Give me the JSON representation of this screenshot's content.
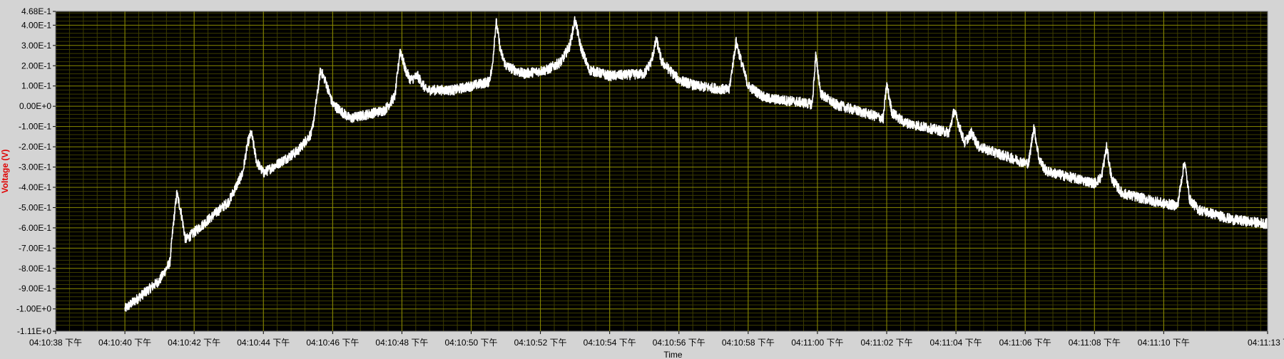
{
  "chart_data": {
    "type": "line",
    "xlabel": "Time",
    "ylabel": "Voltage (V)",
    "x_start_label": "04:10:38 下午",
    "x_tick_labels": [
      "04:10:38 下午",
      "04:10:40 下午",
      "04:10:42 下午",
      "04:10:44 下午",
      "04:10:46 下午",
      "04:10:48 下午",
      "04:10:50 下午",
      "04:10:52 下午",
      "04:10:54 下午",
      "04:10:56 下午",
      "04:10:58 下午",
      "04:11:00 下午",
      "04:11:02 下午",
      "04:11:04 下午",
      "04:11:06 下午",
      "04:11:08 下午",
      "04:11:10 下午",
      "04:11:13 下午"
    ],
    "xlim": [
      "04:10:38",
      "04:11:13"
    ],
    "ylim": [
      -1.11,
      0.468
    ],
    "y_tick_labels": [
      "4.68E-1",
      "4.00E-1",
      "3.00E-1",
      "2.00E-1",
      "1.00E-1",
      "0.00E+0",
      "-1.00E-1",
      "-2.00E-1",
      "-3.00E-1",
      "-4.00E-1",
      "-5.00E-1",
      "-6.00E-1",
      "-7.00E-1",
      "-8.00E-1",
      "-9.00E-1",
      "-1.00E+0",
      "-1.11E+0"
    ],
    "y_tick_values": [
      0.468,
      0.4,
      0.3,
      0.2,
      0.1,
      0.0,
      -0.1,
      -0.2,
      -0.3,
      -0.4,
      -0.5,
      -0.6,
      -0.7,
      -0.8,
      -0.9,
      -1.0,
      -1.11
    ],
    "grid": true,
    "colors": {
      "plot_bg": "#000000",
      "major_grid": "#8c8c00",
      "minor_grid": "#3c3c00",
      "trace": "#ffffff",
      "ylabel": "#e00000",
      "frame": "#d4d4d4"
    },
    "series": [
      {
        "noise_band_V": 0.025,
        "points": [
          [
            "04:10:40.0",
            -1.0
          ],
          [
            "04:10:41.0",
            -0.86
          ],
          [
            "04:10:41.3",
            -0.77
          ],
          [
            "04:10:41.4",
            -0.58
          ],
          [
            "04:10:41.5",
            -0.43
          ],
          [
            "04:10:41.62",
            -0.52
          ],
          [
            "04:10:41.75",
            -0.66
          ],
          [
            "04:10:43.0",
            -0.47
          ],
          [
            "04:10:43.4",
            -0.33
          ],
          [
            "04:10:43.55",
            -0.18
          ],
          [
            "04:10:43.65",
            -0.13
          ],
          [
            "04:10:43.8",
            -0.27
          ],
          [
            "04:10:44.0",
            -0.33
          ],
          [
            "04:10:45.0",
            -0.22
          ],
          [
            "04:10:45.4",
            -0.13
          ],
          [
            "04:10:45.55",
            0.05
          ],
          [
            "04:10:45.65",
            0.18
          ],
          [
            "04:10:45.8",
            0.12
          ],
          [
            "04:10:46.0",
            0.01
          ],
          [
            "04:10:46.5",
            -0.06
          ],
          [
            "04:10:47.5",
            -0.02
          ],
          [
            "04:10:47.8",
            0.05
          ],
          [
            "04:10:47.95",
            0.28
          ],
          [
            "04:10:48.1",
            0.18
          ],
          [
            "04:10:48.25",
            0.13
          ],
          [
            "04:10:48.45",
            0.15
          ],
          [
            "04:10:48.7",
            0.08
          ],
          [
            "04:10:49.5",
            0.08
          ],
          [
            "04:10:50.5",
            0.12
          ],
          [
            "04:10:50.6",
            0.18
          ],
          [
            "04:10:50.72",
            0.42
          ],
          [
            "04:10:50.85",
            0.27
          ],
          [
            "04:10:51.0",
            0.2
          ],
          [
            "04:10:51.5",
            0.16
          ],
          [
            "04:10:52.2",
            0.18
          ],
          [
            "04:10:52.6",
            0.22
          ],
          [
            "04:10:52.85",
            0.3
          ],
          [
            "04:10:53.0",
            0.43
          ],
          [
            "04:10:53.15",
            0.3
          ],
          [
            "04:10:53.4",
            0.18
          ],
          [
            "04:10:54.0",
            0.15
          ],
          [
            "04:10:55.0",
            0.16
          ],
          [
            "04:10:55.2",
            0.22
          ],
          [
            "04:10:55.35",
            0.33
          ],
          [
            "04:10:55.5",
            0.22
          ],
          [
            "04:10:56.0",
            0.13
          ],
          [
            "04:10:56.5",
            0.1
          ],
          [
            "04:10:57.0",
            0.09
          ],
          [
            "04:10:57.45",
            0.08
          ],
          [
            "04:10:57.65",
            0.32
          ],
          [
            "04:10:57.8",
            0.22
          ],
          [
            "04:10:58.0",
            0.1
          ],
          [
            "04:10:58.5",
            0.04
          ],
          [
            "04:10:59.5",
            0.02
          ],
          [
            "04:10:59.85",
            0.01
          ],
          [
            "04:10:59.95",
            0.25
          ],
          [
            "04:11:00.1",
            0.06
          ],
          [
            "04:11:00.5",
            0.01
          ],
          [
            "04:11:01.5",
            -0.04
          ],
          [
            "04:11:01.9",
            -0.06
          ],
          [
            "04:11:02.0",
            0.11
          ],
          [
            "04:11:02.15",
            -0.03
          ],
          [
            "04:11:02.5",
            -0.08
          ],
          [
            "04:11:03.8",
            -0.13
          ],
          [
            "04:11:03.95",
            -0.02
          ],
          [
            "04:11:04.1",
            -0.1
          ],
          [
            "04:11:04.25",
            -0.18
          ],
          [
            "04:11:04.45",
            -0.13
          ],
          [
            "04:11:04.65",
            -0.2
          ],
          [
            "04:11:05.5",
            -0.25
          ],
          [
            "04:11:06.0",
            -0.28
          ],
          [
            "04:11:06.1",
            -0.28
          ],
          [
            "04:11:06.25",
            -0.1
          ],
          [
            "04:11:06.4",
            -0.26
          ],
          [
            "04:11:06.6",
            -0.32
          ],
          [
            "04:11:08.0",
            -0.38
          ],
          [
            "04:11:08.2",
            -0.35
          ],
          [
            "04:11:08.35",
            -0.2
          ],
          [
            "04:11:08.5",
            -0.36
          ],
          [
            "04:11:08.8",
            -0.43
          ],
          [
            "04:11:10.0",
            -0.48
          ],
          [
            "04:11:10.4",
            -0.49
          ],
          [
            "04:11:10.6",
            -0.27
          ],
          [
            "04:11:10.75",
            -0.46
          ],
          [
            "04:11:11.0",
            -0.51
          ],
          [
            "04:11:12.0",
            -0.56
          ],
          [
            "04:11:13.0",
            -0.58
          ]
        ]
      }
    ]
  }
}
